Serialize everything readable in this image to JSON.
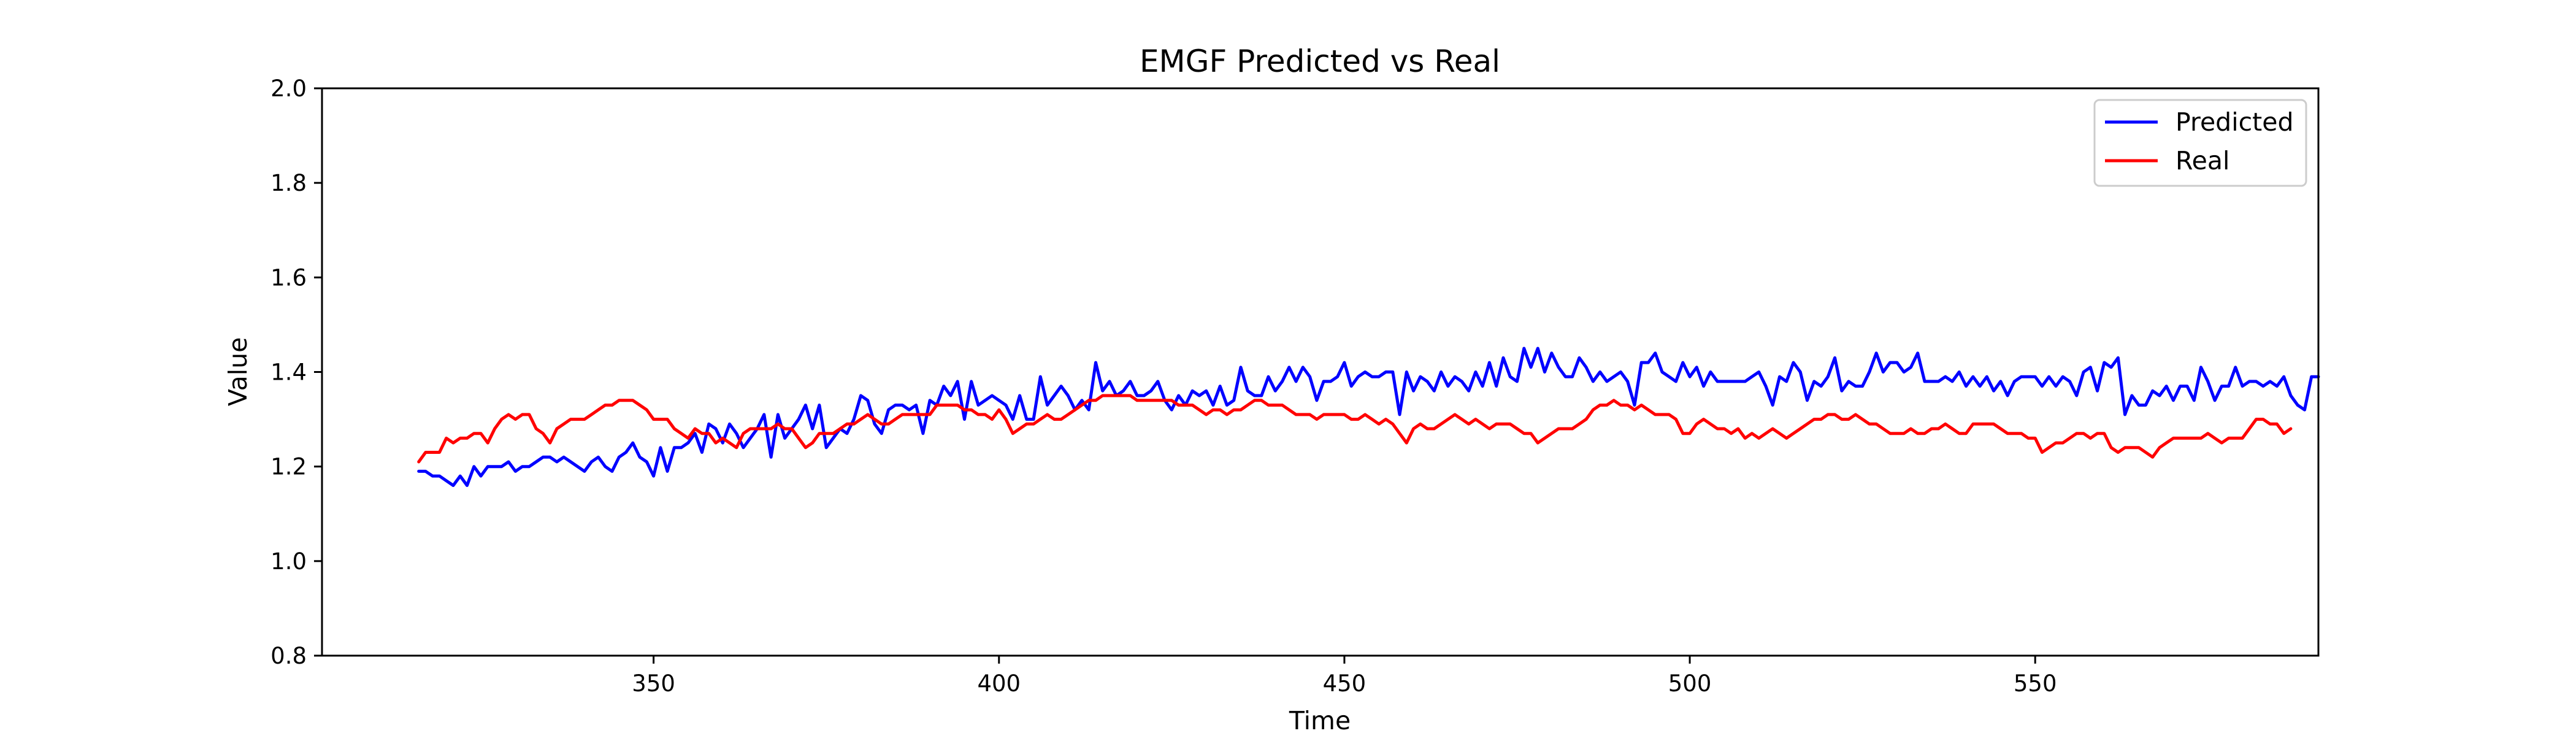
{
  "chart_data": {
    "type": "line",
    "title": "EMGF Predicted vs Real",
    "xlabel": "Time",
    "ylabel": "Value",
    "xlim": [
      302,
      591
    ],
    "ylim": [
      0.8,
      2.0
    ],
    "xticks": [
      350,
      400,
      450,
      500,
      550
    ],
    "yticks": [
      0.8,
      1.0,
      1.2,
      1.4,
      1.6,
      1.8,
      2.0
    ],
    "xtick_labels": [
      "350",
      "400",
      "450",
      "500",
      "550"
    ],
    "ytick_labels": [
      "0.8",
      "1.0",
      "1.2",
      "1.4",
      "1.6",
      "1.8",
      "2.0"
    ],
    "grid": false,
    "legend_position": "top-right",
    "x_start": 316,
    "x_step": 1,
    "series": [
      {
        "name": "Predicted",
        "color": "#0000ff",
        "values": [
          1.19,
          1.19,
          1.18,
          1.18,
          1.17,
          1.16,
          1.18,
          1.16,
          1.2,
          1.18,
          1.2,
          1.2,
          1.2,
          1.21,
          1.19,
          1.2,
          1.2,
          1.21,
          1.22,
          1.22,
          1.21,
          1.22,
          1.21,
          1.2,
          1.19,
          1.21,
          1.22,
          1.2,
          1.19,
          1.22,
          1.23,
          1.25,
          1.22,
          1.21,
          1.18,
          1.24,
          1.19,
          1.24,
          1.24,
          1.25,
          1.27,
          1.23,
          1.29,
          1.28,
          1.25,
          1.29,
          1.27,
          1.24,
          1.26,
          1.28,
          1.31,
          1.22,
          1.31,
          1.26,
          1.28,
          1.3,
          1.33,
          1.28,
          1.33,
          1.24,
          1.26,
          1.28,
          1.27,
          1.3,
          1.35,
          1.34,
          1.29,
          1.27,
          1.32,
          1.33,
          1.33,
          1.32,
          1.33,
          1.27,
          1.34,
          1.33,
          1.37,
          1.35,
          1.38,
          1.3,
          1.38,
          1.33,
          1.34,
          1.35,
          1.34,
          1.33,
          1.3,
          1.35,
          1.3,
          1.3,
          1.39,
          1.33,
          1.35,
          1.37,
          1.35,
          1.32,
          1.34,
          1.32,
          1.42,
          1.36,
          1.38,
          1.35,
          1.36,
          1.38,
          1.35,
          1.35,
          1.36,
          1.38,
          1.34,
          1.32,
          1.35,
          1.33,
          1.36,
          1.35,
          1.36,
          1.33,
          1.37,
          1.33,
          1.34,
          1.41,
          1.36,
          1.35,
          1.35,
          1.39,
          1.36,
          1.38,
          1.41,
          1.38,
          1.41,
          1.39,
          1.34,
          1.38,
          1.38,
          1.39,
          1.42,
          1.37,
          1.39,
          1.4,
          1.39,
          1.39,
          1.4,
          1.4,
          1.31,
          1.4,
          1.36,
          1.39,
          1.38,
          1.36,
          1.4,
          1.37,
          1.39,
          1.38,
          1.36,
          1.4,
          1.37,
          1.42,
          1.37,
          1.43,
          1.39,
          1.38,
          1.45,
          1.41,
          1.45,
          1.4,
          1.44,
          1.41,
          1.39,
          1.39,
          1.43,
          1.41,
          1.38,
          1.4,
          1.38,
          1.39,
          1.4,
          1.38,
          1.33,
          1.42,
          1.42,
          1.44,
          1.4,
          1.39,
          1.38,
          1.42,
          1.39,
          1.41,
          1.37,
          1.4,
          1.38,
          1.38,
          1.38,
          1.38,
          1.38,
          1.39,
          1.4,
          1.37,
          1.33,
          1.39,
          1.38,
          1.42,
          1.4,
          1.34,
          1.38,
          1.37,
          1.39,
          1.43,
          1.36,
          1.38,
          1.37,
          1.37,
          1.4,
          1.44,
          1.4,
          1.42,
          1.42,
          1.4,
          1.41,
          1.44,
          1.38,
          1.38,
          1.38,
          1.39,
          1.38,
          1.4,
          1.37,
          1.39,
          1.37,
          1.39,
          1.36,
          1.38,
          1.35,
          1.38,
          1.39,
          1.39,
          1.39,
          1.37,
          1.39,
          1.37,
          1.39,
          1.38,
          1.35,
          1.4,
          1.41,
          1.36,
          1.42,
          1.41,
          1.43,
          1.31,
          1.35,
          1.33,
          1.33,
          1.36,
          1.35,
          1.37,
          1.34,
          1.37,
          1.37,
          1.34,
          1.41,
          1.38,
          1.34,
          1.37,
          1.37,
          1.41,
          1.37,
          1.38,
          1.38,
          1.37,
          1.38,
          1.37,
          1.39,
          1.35,
          1.33,
          1.32,
          1.39,
          1.39
        ]
      },
      {
        "name": "Real",
        "color": "#ff0000",
        "values": [
          1.21,
          1.23,
          1.23,
          1.23,
          1.26,
          1.25,
          1.26,
          1.26,
          1.27,
          1.27,
          1.25,
          1.28,
          1.3,
          1.31,
          1.3,
          1.31,
          1.31,
          1.28,
          1.27,
          1.25,
          1.28,
          1.29,
          1.3,
          1.3,
          1.3,
          1.31,
          1.32,
          1.33,
          1.33,
          1.34,
          1.34,
          1.34,
          1.33,
          1.32,
          1.3,
          1.3,
          1.3,
          1.28,
          1.27,
          1.26,
          1.28,
          1.27,
          1.27,
          1.25,
          1.26,
          1.25,
          1.24,
          1.27,
          1.28,
          1.28,
          1.28,
          1.28,
          1.29,
          1.28,
          1.28,
          1.26,
          1.24,
          1.25,
          1.27,
          1.27,
          1.27,
          1.28,
          1.29,
          1.29,
          1.3,
          1.31,
          1.3,
          1.29,
          1.29,
          1.3,
          1.31,
          1.31,
          1.31,
          1.31,
          1.31,
          1.33,
          1.33,
          1.33,
          1.33,
          1.32,
          1.32,
          1.31,
          1.31,
          1.3,
          1.32,
          1.3,
          1.27,
          1.28,
          1.29,
          1.29,
          1.3,
          1.31,
          1.3,
          1.3,
          1.31,
          1.32,
          1.33,
          1.34,
          1.34,
          1.35,
          1.35,
          1.35,
          1.35,
          1.35,
          1.34,
          1.34,
          1.34,
          1.34,
          1.34,
          1.34,
          1.33,
          1.33,
          1.33,
          1.32,
          1.31,
          1.32,
          1.32,
          1.31,
          1.32,
          1.32,
          1.33,
          1.34,
          1.34,
          1.33,
          1.33,
          1.33,
          1.32,
          1.31,
          1.31,
          1.31,
          1.3,
          1.31,
          1.31,
          1.31,
          1.31,
          1.3,
          1.3,
          1.31,
          1.3,
          1.29,
          1.3,
          1.29,
          1.27,
          1.25,
          1.28,
          1.29,
          1.28,
          1.28,
          1.29,
          1.3,
          1.31,
          1.3,
          1.29,
          1.3,
          1.29,
          1.28,
          1.29,
          1.29,
          1.29,
          1.28,
          1.27,
          1.27,
          1.25,
          1.26,
          1.27,
          1.28,
          1.28,
          1.28,
          1.29,
          1.3,
          1.32,
          1.33,
          1.33,
          1.34,
          1.33,
          1.33,
          1.32,
          1.33,
          1.32,
          1.31,
          1.31,
          1.31,
          1.3,
          1.27,
          1.27,
          1.29,
          1.3,
          1.29,
          1.28,
          1.28,
          1.27,
          1.28,
          1.26,
          1.27,
          1.26,
          1.27,
          1.28,
          1.27,
          1.26,
          1.27,
          1.28,
          1.29,
          1.3,
          1.3,
          1.31,
          1.31,
          1.3,
          1.3,
          1.31,
          1.3,
          1.29,
          1.29,
          1.28,
          1.27,
          1.27,
          1.27,
          1.28,
          1.27,
          1.27,
          1.28,
          1.28,
          1.29,
          1.28,
          1.27,
          1.27,
          1.29,
          1.29,
          1.29,
          1.29,
          1.28,
          1.27,
          1.27,
          1.27,
          1.26,
          1.26,
          1.23,
          1.24,
          1.25,
          1.25,
          1.26,
          1.27,
          1.27,
          1.26,
          1.27,
          1.27,
          1.24,
          1.23,
          1.24,
          1.24,
          1.24,
          1.23,
          1.22,
          1.24,
          1.25,
          1.26,
          1.26,
          1.26,
          1.26,
          1.26,
          1.27,
          1.26,
          1.25,
          1.26,
          1.26,
          1.26,
          1.28,
          1.3,
          1.3,
          1.29,
          1.29,
          1.27,
          1.28
        ]
      }
    ]
  }
}
